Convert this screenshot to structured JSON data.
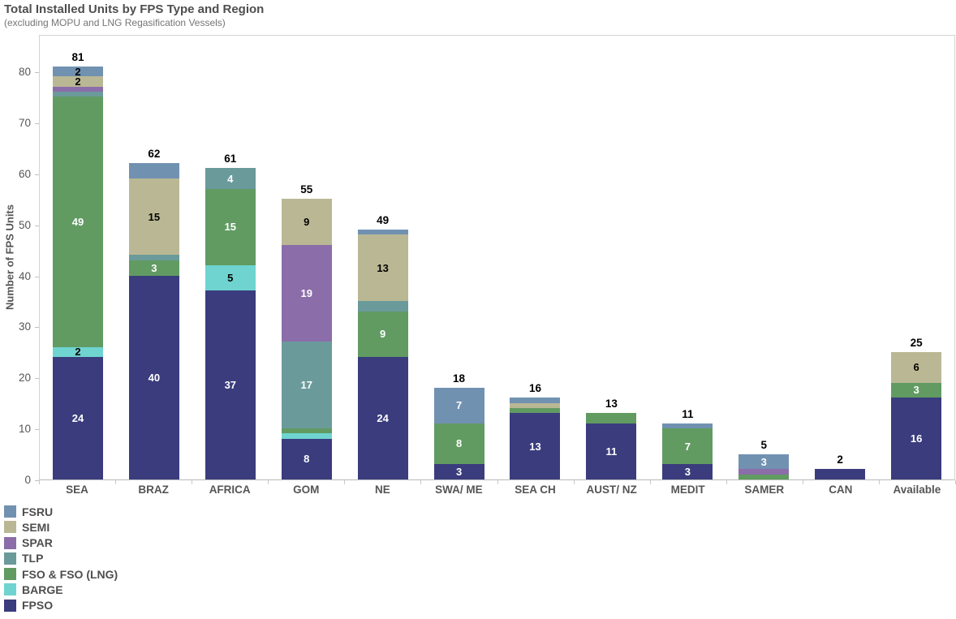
{
  "chart_data": {
    "type": "bar",
    "stacked": true,
    "title": "Total Installed Units by FPS Type and Region",
    "subtitle": "(excluding MOPU and LNG Regasification Vessels)",
    "ylabel": "Number of FPS Units",
    "ylim": [
      0,
      87
    ],
    "yticks": [
      0,
      10,
      20,
      30,
      40,
      50,
      60,
      70,
      80
    ],
    "grid": false,
    "legend_position": "bottom-left",
    "colors": {
      "FSRU": "#7191b1",
      "SEMI": "#bab894",
      "SPAR": "#8b6da9",
      "TLP": "#6b9a9b",
      "FSO & FSO (LNG)": "#619b62",
      "BARGE": "#6fd4d0",
      "FPSO": "#3a3c7d"
    },
    "legend": [
      "FSRU",
      "SEMI",
      "SPAR",
      "TLP",
      "FSO & FSO (LNG)",
      "BARGE",
      "FPSO"
    ],
    "stack_order_bottom_to_top": [
      "FPSO",
      "BARGE",
      "FSO & FSO (LNG)",
      "TLP",
      "SPAR",
      "SEMI",
      "FSRU"
    ],
    "categories": [
      {
        "name": "SEA",
        "total": 81,
        "segments": [
          {
            "type": "FPSO",
            "value": 24,
            "label": "24",
            "label_color": "#ffffff"
          },
          {
            "type": "BARGE",
            "value": 2,
            "label": "2",
            "label_color": "#000000"
          },
          {
            "type": "FSO & FSO (LNG)",
            "value": 49,
            "label": "49",
            "label_color": "#ffffff"
          },
          {
            "type": "TLP",
            "value": 1
          },
          {
            "type": "SPAR",
            "value": 1
          },
          {
            "type": "SEMI",
            "value": 2,
            "label": "2",
            "label_color": "#000000"
          },
          {
            "type": "FSRU",
            "value": 2,
            "label": "2",
            "label_color": "#000000"
          }
        ]
      },
      {
        "name": "BRAZ",
        "total": 62,
        "segments": [
          {
            "type": "FPSO",
            "value": 40,
            "label": "40",
            "label_color": "#ffffff"
          },
          {
            "type": "FSO & FSO (LNG)",
            "value": 3,
            "label": "3",
            "label_color": "#ffffff"
          },
          {
            "type": "TLP",
            "value": 1
          },
          {
            "type": "SEMI",
            "value": 15,
            "label": "15",
            "label_color": "#000000"
          },
          {
            "type": "FSRU",
            "value": 3
          }
        ]
      },
      {
        "name": "AFRICA",
        "total": 61,
        "segments": [
          {
            "type": "FPSO",
            "value": 37,
            "label": "37",
            "label_color": "#ffffff"
          },
          {
            "type": "BARGE",
            "value": 5,
            "label": "5",
            "label_color": "#000000"
          },
          {
            "type": "FSO & FSO (LNG)",
            "value": 15,
            "label": "15",
            "label_color": "#ffffff"
          },
          {
            "type": "TLP",
            "value": 4,
            "label": "4",
            "label_color": "#ffffff"
          }
        ]
      },
      {
        "name": "GOM",
        "total": 55,
        "segments": [
          {
            "type": "FPSO",
            "value": 8,
            "label": "8",
            "label_color": "#ffffff"
          },
          {
            "type": "BARGE",
            "value": 1
          },
          {
            "type": "FSO & FSO (LNG)",
            "value": 1
          },
          {
            "type": "TLP",
            "value": 17,
            "label": "17",
            "label_color": "#ffffff"
          },
          {
            "type": "SPAR",
            "value": 19,
            "label": "19",
            "label_color": "#ffffff"
          },
          {
            "type": "SEMI",
            "value": 9,
            "label": "9",
            "label_color": "#000000"
          }
        ]
      },
      {
        "name": "NE",
        "total": 49,
        "segments": [
          {
            "type": "FPSO",
            "value": 24,
            "label": "24",
            "label_color": "#ffffff"
          },
          {
            "type": "FSO & FSO (LNG)",
            "value": 9,
            "label": "9",
            "label_color": "#ffffff"
          },
          {
            "type": "TLP",
            "value": 2
          },
          {
            "type": "SEMI",
            "value": 13,
            "label": "13",
            "label_color": "#000000"
          },
          {
            "type": "FSRU",
            "value": 1
          }
        ]
      },
      {
        "name": "SWA/ ME",
        "total": 18,
        "segments": [
          {
            "type": "FPSO",
            "value": 3,
            "label": "3",
            "label_color": "#ffffff"
          },
          {
            "type": "FSO & FSO (LNG)",
            "value": 8,
            "label": "8",
            "label_color": "#ffffff"
          },
          {
            "type": "FSRU",
            "value": 7,
            "label": "7",
            "label_color": "#ffffff"
          }
        ]
      },
      {
        "name": "SEA CH",
        "total": 16,
        "segments": [
          {
            "type": "FPSO",
            "value": 13,
            "label": "13",
            "label_color": "#ffffff"
          },
          {
            "type": "FSO & FSO (LNG)",
            "value": 1
          },
          {
            "type": "SEMI",
            "value": 1
          },
          {
            "type": "FSRU",
            "value": 1
          }
        ]
      },
      {
        "name": "AUST/ NZ",
        "total": 13,
        "segments": [
          {
            "type": "FPSO",
            "value": 11,
            "label": "11",
            "label_color": "#ffffff"
          },
          {
            "type": "FSO & FSO (LNG)",
            "value": 2
          }
        ]
      },
      {
        "name": "MEDIT",
        "total": 11,
        "segments": [
          {
            "type": "FPSO",
            "value": 3,
            "label": "3",
            "label_color": "#ffffff"
          },
          {
            "type": "FSO & FSO (LNG)",
            "value": 7,
            "label": "7",
            "label_color": "#ffffff"
          },
          {
            "type": "FSRU",
            "value": 1
          }
        ]
      },
      {
        "name": "SAMER",
        "total": 5,
        "segments": [
          {
            "type": "FSO & FSO (LNG)",
            "value": 1
          },
          {
            "type": "SPAR",
            "value": 1
          },
          {
            "type": "FSRU",
            "value": 3,
            "label": "3",
            "label_color": "#ffffff"
          }
        ]
      },
      {
        "name": "CAN",
        "total": 2,
        "segments": [
          {
            "type": "FPSO",
            "value": 2
          }
        ]
      },
      {
        "name": "Available",
        "total": 25,
        "segments": [
          {
            "type": "FPSO",
            "value": 16,
            "label": "16",
            "label_color": "#ffffff"
          },
          {
            "type": "FSO & FSO (LNG)",
            "value": 3,
            "label": "3",
            "label_color": "#ffffff"
          },
          {
            "type": "SEMI",
            "value": 6,
            "label": "6",
            "label_color": "#000000"
          }
        ]
      }
    ]
  }
}
